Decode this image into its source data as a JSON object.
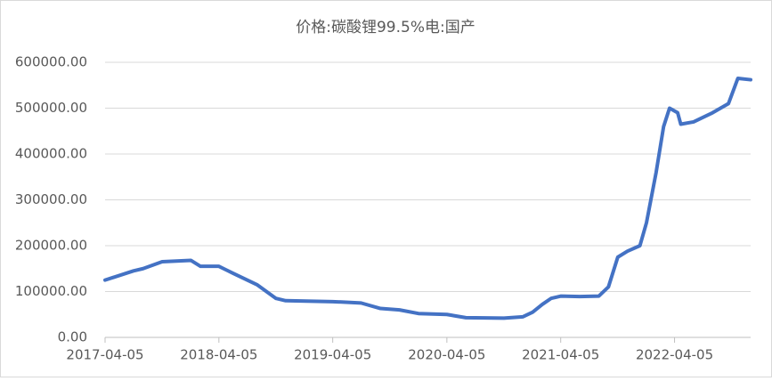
{
  "chart_data": {
    "type": "line",
    "title": "价格:碳酸锂99.5%电:国产",
    "x": [
      "2017-04-05",
      "2017-07-05",
      "2017-08-05",
      "2017-10-05",
      "2018-01-05",
      "2018-02-05",
      "2018-04-05",
      "2018-05-20",
      "2018-08-05",
      "2018-10-05",
      "2018-11-05",
      "2019-04-05",
      "2019-07-05",
      "2019-09-05",
      "2019-11-05",
      "2020-01-05",
      "2020-04-05",
      "2020-06-05",
      "2020-10-05",
      "2020-12-05",
      "2021-01-05",
      "2021-02-05",
      "2021-03-05",
      "2021-04-05",
      "2021-06-05",
      "2021-08-05",
      "2021-09-05",
      "2021-10-05",
      "2021-11-05",
      "2021-12-15",
      "2022-01-05",
      "2022-02-05",
      "2022-03-01",
      "2022-03-20",
      "2022-04-15",
      "2022-04-25",
      "2022-06-05",
      "2022-08-05",
      "2022-09-25",
      "2022-10-25",
      "2022-12-05"
    ],
    "series": [
      {
        "name": "价格:碳酸锂99.5%电:国产",
        "color": "#4472c4",
        "values": [
          125000,
          145000,
          150000,
          165000,
          168000,
          155000,
          155000,
          140000,
          115000,
          85000,
          80000,
          78000,
          75000,
          63000,
          60000,
          52000,
          50000,
          43000,
          42000,
          45000,
          55000,
          72000,
          85000,
          90000,
          89000,
          90000,
          110000,
          175000,
          188000,
          200000,
          250000,
          360000,
          460000,
          500000,
          490000,
          465000,
          470000,
          490000,
          510000,
          565000,
          562000
        ]
      }
    ],
    "xlim": [
      "2017-04-05",
      "2022-12-05"
    ],
    "xticks": [
      "2017-04-05",
      "2018-04-05",
      "2019-04-05",
      "2020-04-05",
      "2021-04-05",
      "2022-04-05"
    ],
    "ylim": [
      0,
      600000
    ],
    "yticks": [
      {
        "value": 0,
        "label": "0.00"
      },
      {
        "value": 100000,
        "label": "100000.00"
      },
      {
        "value": 200000,
        "label": "200000.00"
      },
      {
        "value": 300000,
        "label": "300000.00"
      },
      {
        "value": 400000,
        "label": "400000.00"
      },
      {
        "value": 500000,
        "label": "500000.00"
      },
      {
        "value": 600000,
        "label": "600000.00"
      }
    ],
    "grid": true
  }
}
